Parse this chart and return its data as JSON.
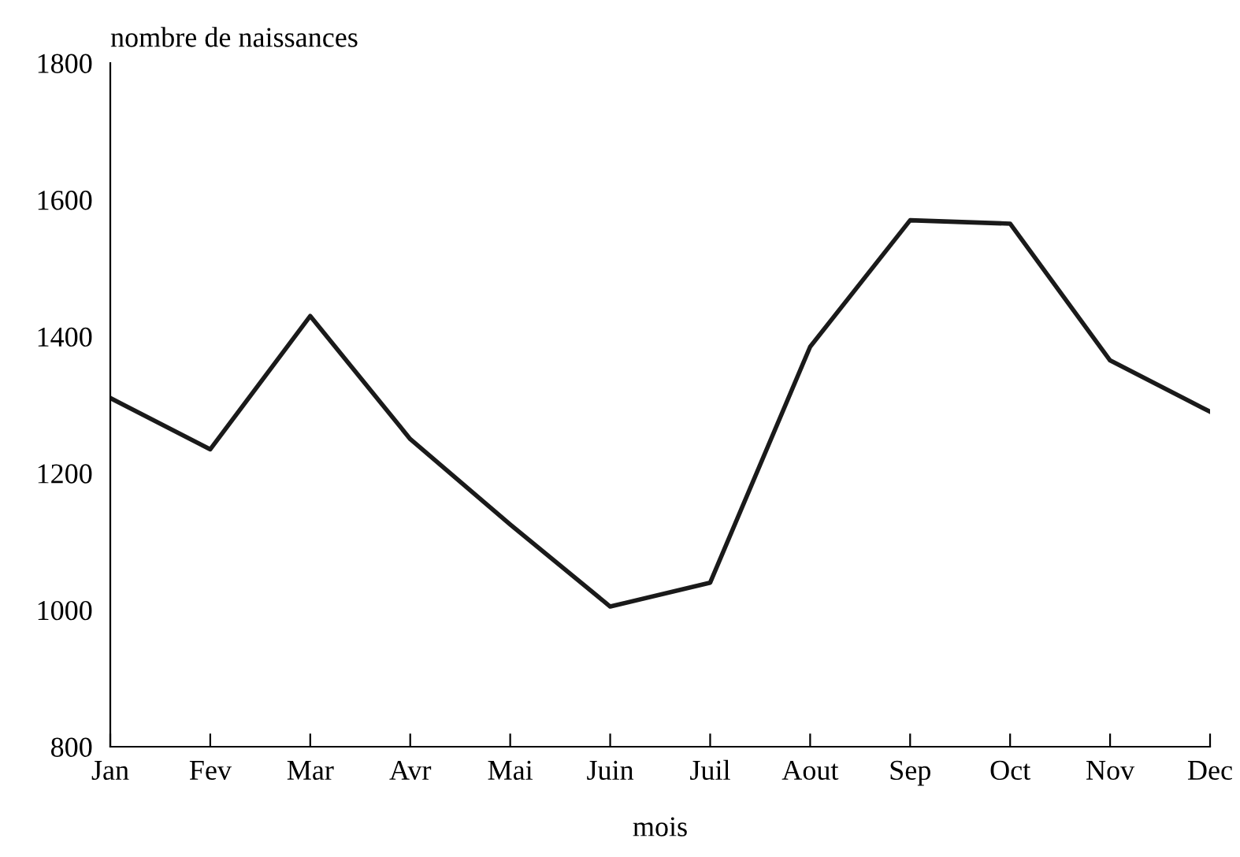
{
  "chart_data": {
    "type": "line",
    "ylabel": "nombre de naissances",
    "xlabel": "mois",
    "categories": [
      "Jan",
      "Fev",
      "Mar",
      "Avr",
      "Mai",
      "Juin",
      "Juil",
      "Aout",
      "Sep",
      "Oct",
      "Nov",
      "Dec"
    ],
    "series": [
      {
        "color": "#1a1a1a",
        "values": [
          1310,
          1235,
          1430,
          1250,
          1125,
          1005,
          1040,
          1385,
          1570,
          1565,
          1365,
          1290
        ]
      }
    ],
    "ylim": [
      800,
      1800
    ],
    "yticks": [
      800,
      1000,
      1200,
      1400,
      1600,
      1800
    ],
    "grid": false,
    "marker": "none",
    "line_style": "solid"
  }
}
